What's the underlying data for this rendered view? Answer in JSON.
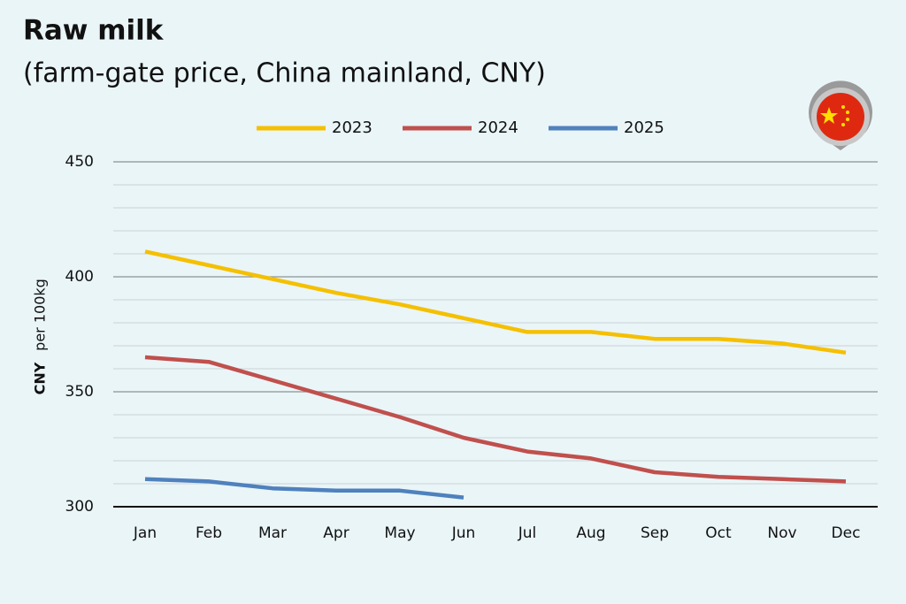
{
  "chart_data": {
    "type": "line",
    "title": "Raw milk",
    "subtitle": "(farm-gate price, China mainland, CNY)",
    "y_label_unit": "CNY",
    "y_label": "per 100kg",
    "categories": [
      "Jan",
      "Feb",
      "Mar",
      "Apr",
      "May",
      "Jun",
      "Jul",
      "Aug",
      "Sep",
      "Oct",
      "Nov",
      "Dec"
    ],
    "series": [
      {
        "name": "2023",
        "color": "#f5c000",
        "values": [
          411,
          405,
          399,
          393,
          388,
          382,
          376,
          376,
          373,
          373,
          371,
          367
        ]
      },
      {
        "name": "2024",
        "color": "#c0504d",
        "values": [
          365,
          363,
          355,
          347,
          339,
          330,
          324,
          321,
          315,
          313,
          312,
          311
        ]
      },
      {
        "name": "2025",
        "color": "#4f81bd",
        "values": [
          312,
          311,
          308,
          307,
          307,
          304,
          null,
          null,
          null,
          null,
          null,
          null
        ]
      }
    ],
    "ylim": [
      300,
      450
    ],
    "yticks": [
      300,
      350,
      400,
      450
    ],
    "minor_yticks": [
      310,
      320,
      330,
      340,
      360,
      370,
      380,
      390,
      410,
      420,
      430,
      440
    ],
    "grid": true
  }
}
